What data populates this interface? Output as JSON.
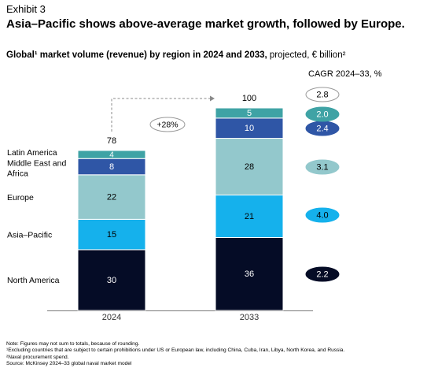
{
  "exhibit_label": "Exhibit 3",
  "chart_data": {
    "type": "bar",
    "stacked": true,
    "title": "Asia–Pacific shows above-average market growth, followed by Europe.",
    "subtitle_bold": "Global¹ market volume (revenue) by region in 2024 and 2033,",
    "subtitle_regular": " projected, € billion²",
    "categories": [
      "2024",
      "2033"
    ],
    "totals": [
      "78",
      "100"
    ],
    "series": [
      {
        "name": "North America",
        "values": [
          30,
          36
        ],
        "labels": [
          "30",
          "36"
        ],
        "color": "#050c26",
        "label_color": "#ffffff",
        "cagr": "2.2"
      },
      {
        "name": "Asia–Pacific",
        "values": [
          15,
          21
        ],
        "labels": [
          "15",
          "21"
        ],
        "color": "#15b1ec",
        "label_color": "#000000",
        "cagr": "4.0"
      },
      {
        "name": "Europe",
        "values": [
          22,
          28
        ],
        "labels": [
          "22",
          "28"
        ],
        "color": "#93c8cc",
        "label_color": "#000000",
        "cagr": "3.1"
      },
      {
        "name": "Middle East and Africa",
        "values": [
          8,
          10
        ],
        "labels": [
          "8",
          "10"
        ],
        "color": "#2f56a6",
        "label_color": "#ffffff",
        "cagr": "2.4"
      },
      {
        "name": "Latin America",
        "values": [
          4,
          5
        ],
        "labels": [
          "4",
          "5"
        ],
        "color": "#3fa3a5",
        "label_color": "#ffffff",
        "cagr": "2.0"
      }
    ],
    "total_cagr": "2.8",
    "growth_label": "+28%",
    "cagr_title": "CAGR 2024–33, %",
    "legend": "left",
    "grid": false
  },
  "footnotes": [
    "Note: Figures may not sum to totals, because of rounding.",
    "¹Excluding countries that are subject to certain prohibitions under US or European law, including China, Cuba, Iran, Libya, North Korea, and Russia.",
    "²Naval procurement spend.",
    " Source: McKinsey 2024–33 global naval market model"
  ]
}
